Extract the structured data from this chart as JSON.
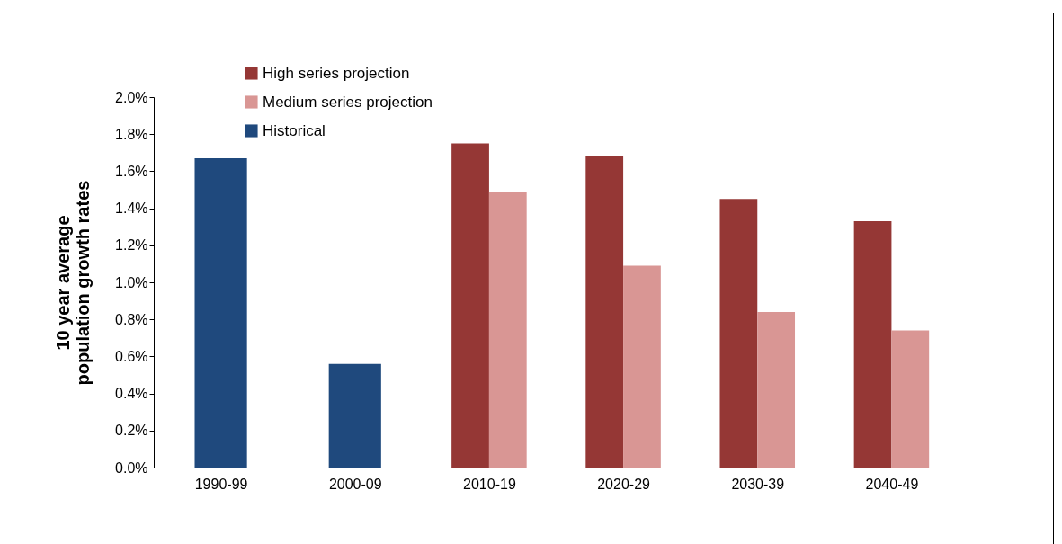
{
  "chart_data": {
    "type": "bar",
    "ylabel": "10 year average population growth rates",
    "categories": [
      "1990-99",
      "2000-09",
      "2010-19",
      "2020-29",
      "2030-39",
      "2040-49"
    ],
    "series": [
      {
        "name": "High series projection",
        "color": "#953735",
        "values": [
          null,
          null,
          1.75,
          1.68,
          1.45,
          1.33
        ]
      },
      {
        "name": "Medium series projection",
        "color": "#d99694",
        "values": [
          null,
          null,
          1.49,
          1.09,
          0.84,
          0.74
        ]
      },
      {
        "name": "Historical",
        "color": "#1f497d",
        "values": [
          1.67,
          0.56,
          null,
          null,
          null,
          null
        ]
      }
    ],
    "ylim": [
      0,
      2.0
    ],
    "yticks": [
      {
        "value": 0,
        "label": "0.0%"
      },
      {
        "value": 0.2,
        "label": "0.2%"
      },
      {
        "value": 0.4,
        "label": "0.4%"
      },
      {
        "value": 0.6,
        "label": "0.6%"
      },
      {
        "value": 0.8,
        "label": "0.8%"
      },
      {
        "value": 1.0,
        "label": "1.0%"
      },
      {
        "value": 1.2,
        "label": "1.2%"
      },
      {
        "value": 1.4,
        "label": "1.4%"
      },
      {
        "value": 1.6,
        "label": "1.6%"
      },
      {
        "value": 1.8,
        "label": "1.8%"
      },
      {
        "value": 2.0,
        "label": "2.0%"
      }
    ],
    "grid": false,
    "legend": "top left"
  }
}
